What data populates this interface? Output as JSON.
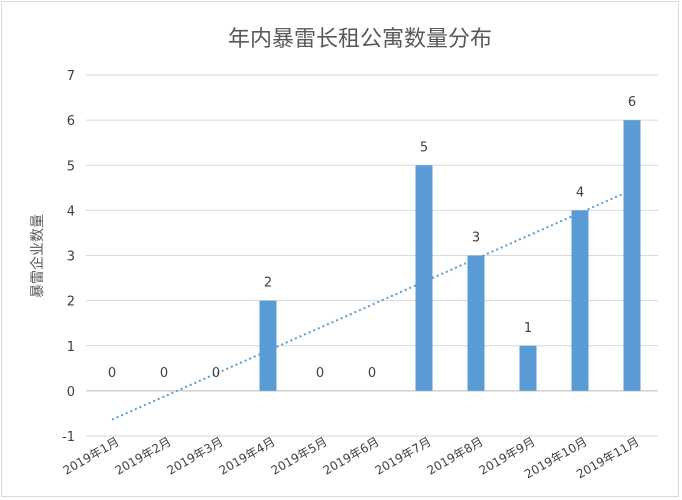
{
  "chart_data": {
    "type": "bar",
    "title": "年内暴雷长租公寓数量分布",
    "ylabel": "暴雷企业数量",
    "xlabel": "",
    "categories": [
      "2019年1月",
      "2019年2月",
      "2019年3月",
      "2019年4月",
      "2019年5月",
      "2019年6月",
      "2019年7月",
      "2019年8月",
      "2019年9月",
      "2019年10月",
      "2019年11月"
    ],
    "values": [
      0,
      0,
      0,
      2,
      0,
      0,
      5,
      3,
      1,
      4,
      6
    ],
    "ylim": [
      -1,
      7
    ],
    "yticks": [
      -1,
      0,
      1,
      2,
      3,
      4,
      5,
      6,
      7
    ],
    "grid": true,
    "bar_color": "#5b9bd5",
    "trendline": {
      "type": "linear",
      "style": "dotted",
      "color": "#5b9bd5"
    }
  }
}
